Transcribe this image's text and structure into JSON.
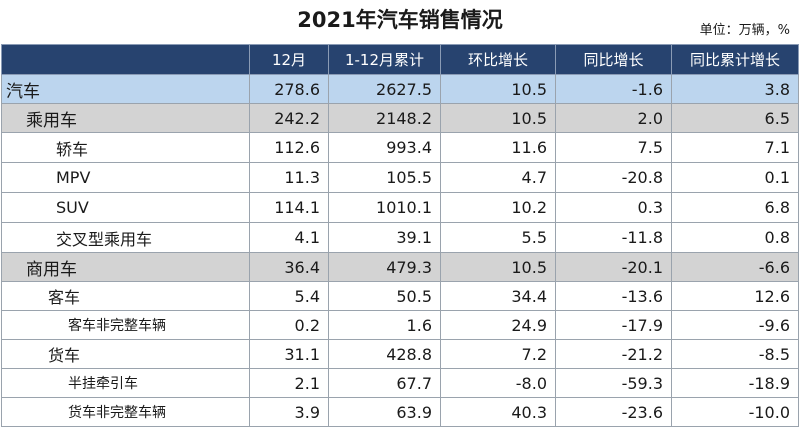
{
  "title": "2021年汽车销售情况",
  "unit": "单位：万辆，%",
  "table": {
    "columns": [
      "",
      "12月",
      "1-12月累计",
      "环比增长",
      "同比增长",
      "同比累计增长"
    ],
    "rows": [
      {
        "label": "汽车",
        "level": 0,
        "values": [
          "278.6",
          "2627.5",
          "10.5",
          "-1.6",
          "3.8"
        ]
      },
      {
        "label": "乘用车",
        "level": 1,
        "values": [
          "242.2",
          "2148.2",
          "10.5",
          "2.0",
          "6.5"
        ]
      },
      {
        "label": "轿车",
        "level": 2,
        "values": [
          "112.6",
          "993.4",
          "11.6",
          "7.5",
          "7.1"
        ]
      },
      {
        "label": "MPV",
        "level": 2,
        "values": [
          "11.3",
          "105.5",
          "4.7",
          "-20.8",
          "0.1"
        ]
      },
      {
        "label": "SUV",
        "level": 2,
        "values": [
          "114.1",
          "1010.1",
          "10.2",
          "0.3",
          "6.8"
        ]
      },
      {
        "label": "交叉型乘用车",
        "level": 2,
        "values": [
          "4.1",
          "39.1",
          "5.5",
          "-11.8",
          "0.8"
        ]
      },
      {
        "label": "商用车",
        "level": 1,
        "values": [
          "36.4",
          "479.3",
          "10.5",
          "-20.1",
          "-6.6"
        ]
      },
      {
        "label": "客车",
        "level": 2,
        "values": [
          "5.4",
          "50.5",
          "34.4",
          "-13.6",
          "12.6"
        ]
      },
      {
        "label": "客车非完整车辆",
        "level": 3,
        "values": [
          "0.2",
          "1.6",
          "24.9",
          "-17.9",
          "-9.6"
        ]
      },
      {
        "label": "货车",
        "level": 2,
        "values": [
          "31.1",
          "428.8",
          "7.2",
          "-21.2",
          "-8.5"
        ]
      },
      {
        "label": "半挂牵引车",
        "level": 3,
        "values": [
          "2.1",
          "67.7",
          "-8.0",
          "-59.3",
          "-18.9"
        ]
      },
      {
        "label": "货车非完整车辆",
        "level": 3,
        "values": [
          "3.9",
          "63.9",
          "40.3",
          "-23.6",
          "-10.0"
        ]
      }
    ]
  },
  "colors": {
    "header_bg": "#27436f",
    "total_row_bg": "#bcd5ee",
    "category_row_bg": "#d3d3d3"
  }
}
